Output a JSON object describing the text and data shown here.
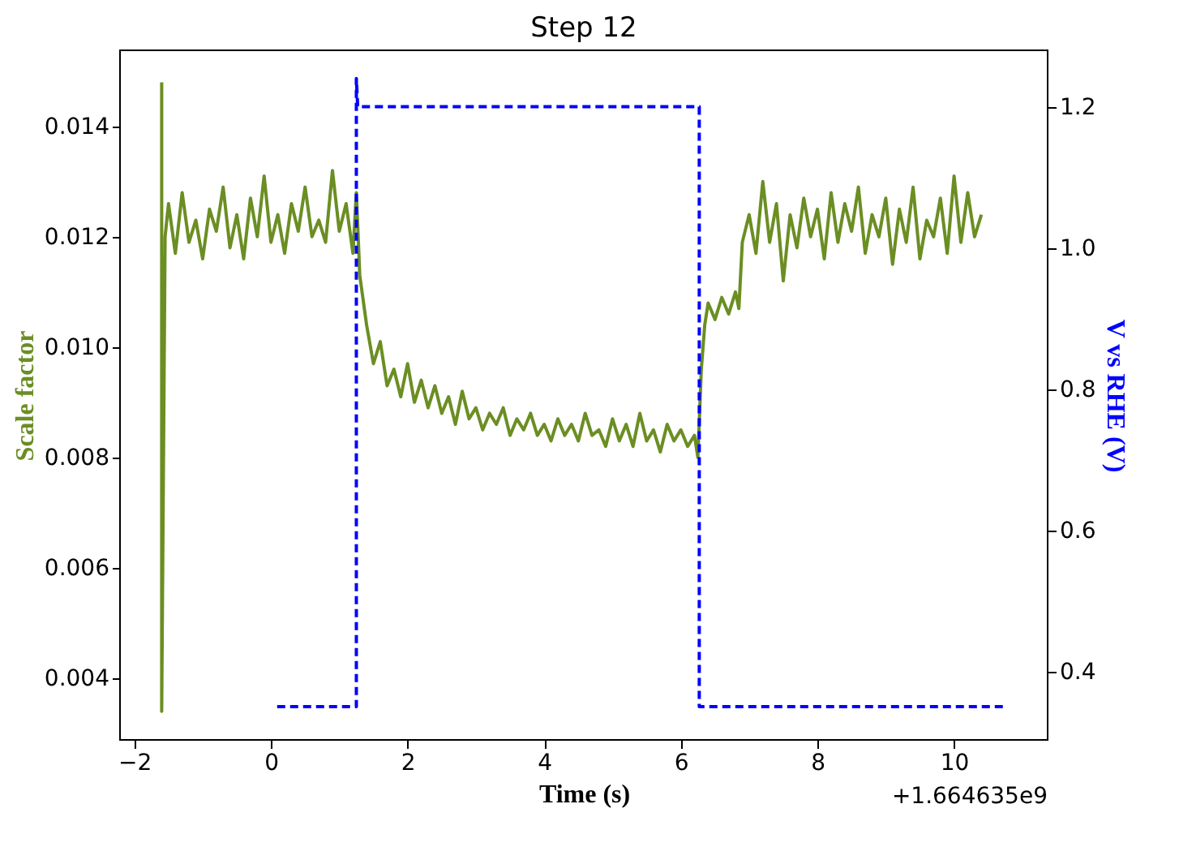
{
  "chart_data": {
    "type": "line",
    "title": "Step 12",
    "xlabel": "Time (s)",
    "ylabel": "Scale factor",
    "y2label": "V vs RHE (V)",
    "xlim": [
      -2.21,
      11.37
    ],
    "xticks": [
      -2,
      0,
      2,
      4,
      6,
      8,
      10
    ],
    "ylim": [
      0.00288,
      0.01538
    ],
    "yticks": [
      0.004,
      0.006,
      0.008,
      {
        "value": 0.01,
        "label": "0.010"
      },
      0.012,
      0.014
    ],
    "y2lim": [
      0.303,
      1.28
    ],
    "y2ticks": [
      0.4,
      0.6,
      0.8,
      {
        "value": 1.0,
        "label": "1.0"
      },
      1.2
    ],
    "grid": false,
    "annotations": [
      "+1.664635e9"
    ],
    "series": [
      {
        "color": "#6b8e23",
        "line_style": "solid",
        "x": [
          -1.6,
          -1.6,
          -1.55,
          -1.5,
          -1.4,
          -1.3,
          -1.2,
          -1.1,
          -1.0,
          -0.9,
          -0.8,
          -0.7,
          -0.6,
          -0.5,
          -0.4,
          -0.3,
          -0.2,
          -0.1,
          0.0,
          0.1,
          0.2,
          0.3,
          0.4,
          0.5,
          0.6,
          0.7,
          0.8,
          0.9,
          1.0,
          1.1,
          1.2,
          1.25,
          1.3,
          1.4,
          1.5,
          1.6,
          1.7,
          1.8,
          1.9,
          2.0,
          2.1,
          2.2,
          2.3,
          2.4,
          2.5,
          2.6,
          2.7,
          2.8,
          2.9,
          3.0,
          3.1,
          3.2,
          3.3,
          3.4,
          3.5,
          3.6,
          3.7,
          3.8,
          3.9,
          4.0,
          4.1,
          4.2,
          4.3,
          4.4,
          4.5,
          4.6,
          4.7,
          4.8,
          4.9,
          5.0,
          5.1,
          5.2,
          5.3,
          5.4,
          5.5,
          5.6,
          5.7,
          5.8,
          5.9,
          6.0,
          6.1,
          6.2,
          6.25,
          6.3,
          6.35,
          6.4,
          6.5,
          6.6,
          6.7,
          6.8,
          6.85,
          6.9,
          7.0,
          7.1,
          7.2,
          7.3,
          7.4,
          7.5,
          7.6,
          7.7,
          7.8,
          7.9,
          8.0,
          8.1,
          8.2,
          8.3,
          8.4,
          8.5,
          8.6,
          8.7,
          8.8,
          8.9,
          9.0,
          9.1,
          9.2,
          9.3,
          9.4,
          9.5,
          9.6,
          9.7,
          9.8,
          9.9,
          10.0,
          10.1,
          10.2,
          10.3,
          10.4
        ],
        "values": [
          0.0148,
          0.0034,
          0.012,
          0.0126,
          0.0117,
          0.0128,
          0.0119,
          0.0123,
          0.0116,
          0.0125,
          0.0121,
          0.0129,
          0.0118,
          0.0124,
          0.0116,
          0.0127,
          0.012,
          0.0131,
          0.0119,
          0.0124,
          0.0117,
          0.0126,
          0.0121,
          0.0129,
          0.012,
          0.0123,
          0.0119,
          0.0132,
          0.0121,
          0.0126,
          0.0117,
          0.0128,
          0.0113,
          0.0104,
          0.0097,
          0.0101,
          0.0093,
          0.0096,
          0.0091,
          0.0097,
          0.009,
          0.0094,
          0.0089,
          0.0093,
          0.0088,
          0.0091,
          0.0086,
          0.0092,
          0.0087,
          0.0089,
          0.0085,
          0.0088,
          0.0086,
          0.0089,
          0.0084,
          0.0087,
          0.0085,
          0.0088,
          0.0084,
          0.0086,
          0.0083,
          0.0087,
          0.0084,
          0.0086,
          0.0083,
          0.0088,
          0.0084,
          0.0085,
          0.0082,
          0.0087,
          0.0083,
          0.0086,
          0.0082,
          0.0088,
          0.0083,
          0.0085,
          0.0081,
          0.0086,
          0.0083,
          0.0085,
          0.0082,
          0.0084,
          0.008,
          0.0096,
          0.0104,
          0.0108,
          0.0105,
          0.0109,
          0.0106,
          0.011,
          0.0107,
          0.0119,
          0.0124,
          0.0117,
          0.013,
          0.0119,
          0.0126,
          0.0112,
          0.0124,
          0.0118,
          0.0127,
          0.012,
          0.0125,
          0.0116,
          0.0128,
          0.0119,
          0.0126,
          0.0121,
          0.0129,
          0.0117,
          0.0124,
          0.012,
          0.0127,
          0.0115,
          0.0125,
          0.0119,
          0.0129,
          0.0116,
          0.0123,
          0.012,
          0.0127,
          0.0117,
          0.0131,
          0.0119,
          0.0128,
          0.012,
          0.0124
        ]
      },
      {
        "color": "#0000ff",
        "line_style": "dashed",
        "axis": "y2",
        "x": [
          0.09,
          1.25,
          1.25,
          1.27,
          6.27,
          6.27,
          10.75
        ],
        "values": [
          0.35,
          0.35,
          1.24,
          1.2,
          1.2,
          0.35,
          0.35
        ]
      }
    ]
  }
}
